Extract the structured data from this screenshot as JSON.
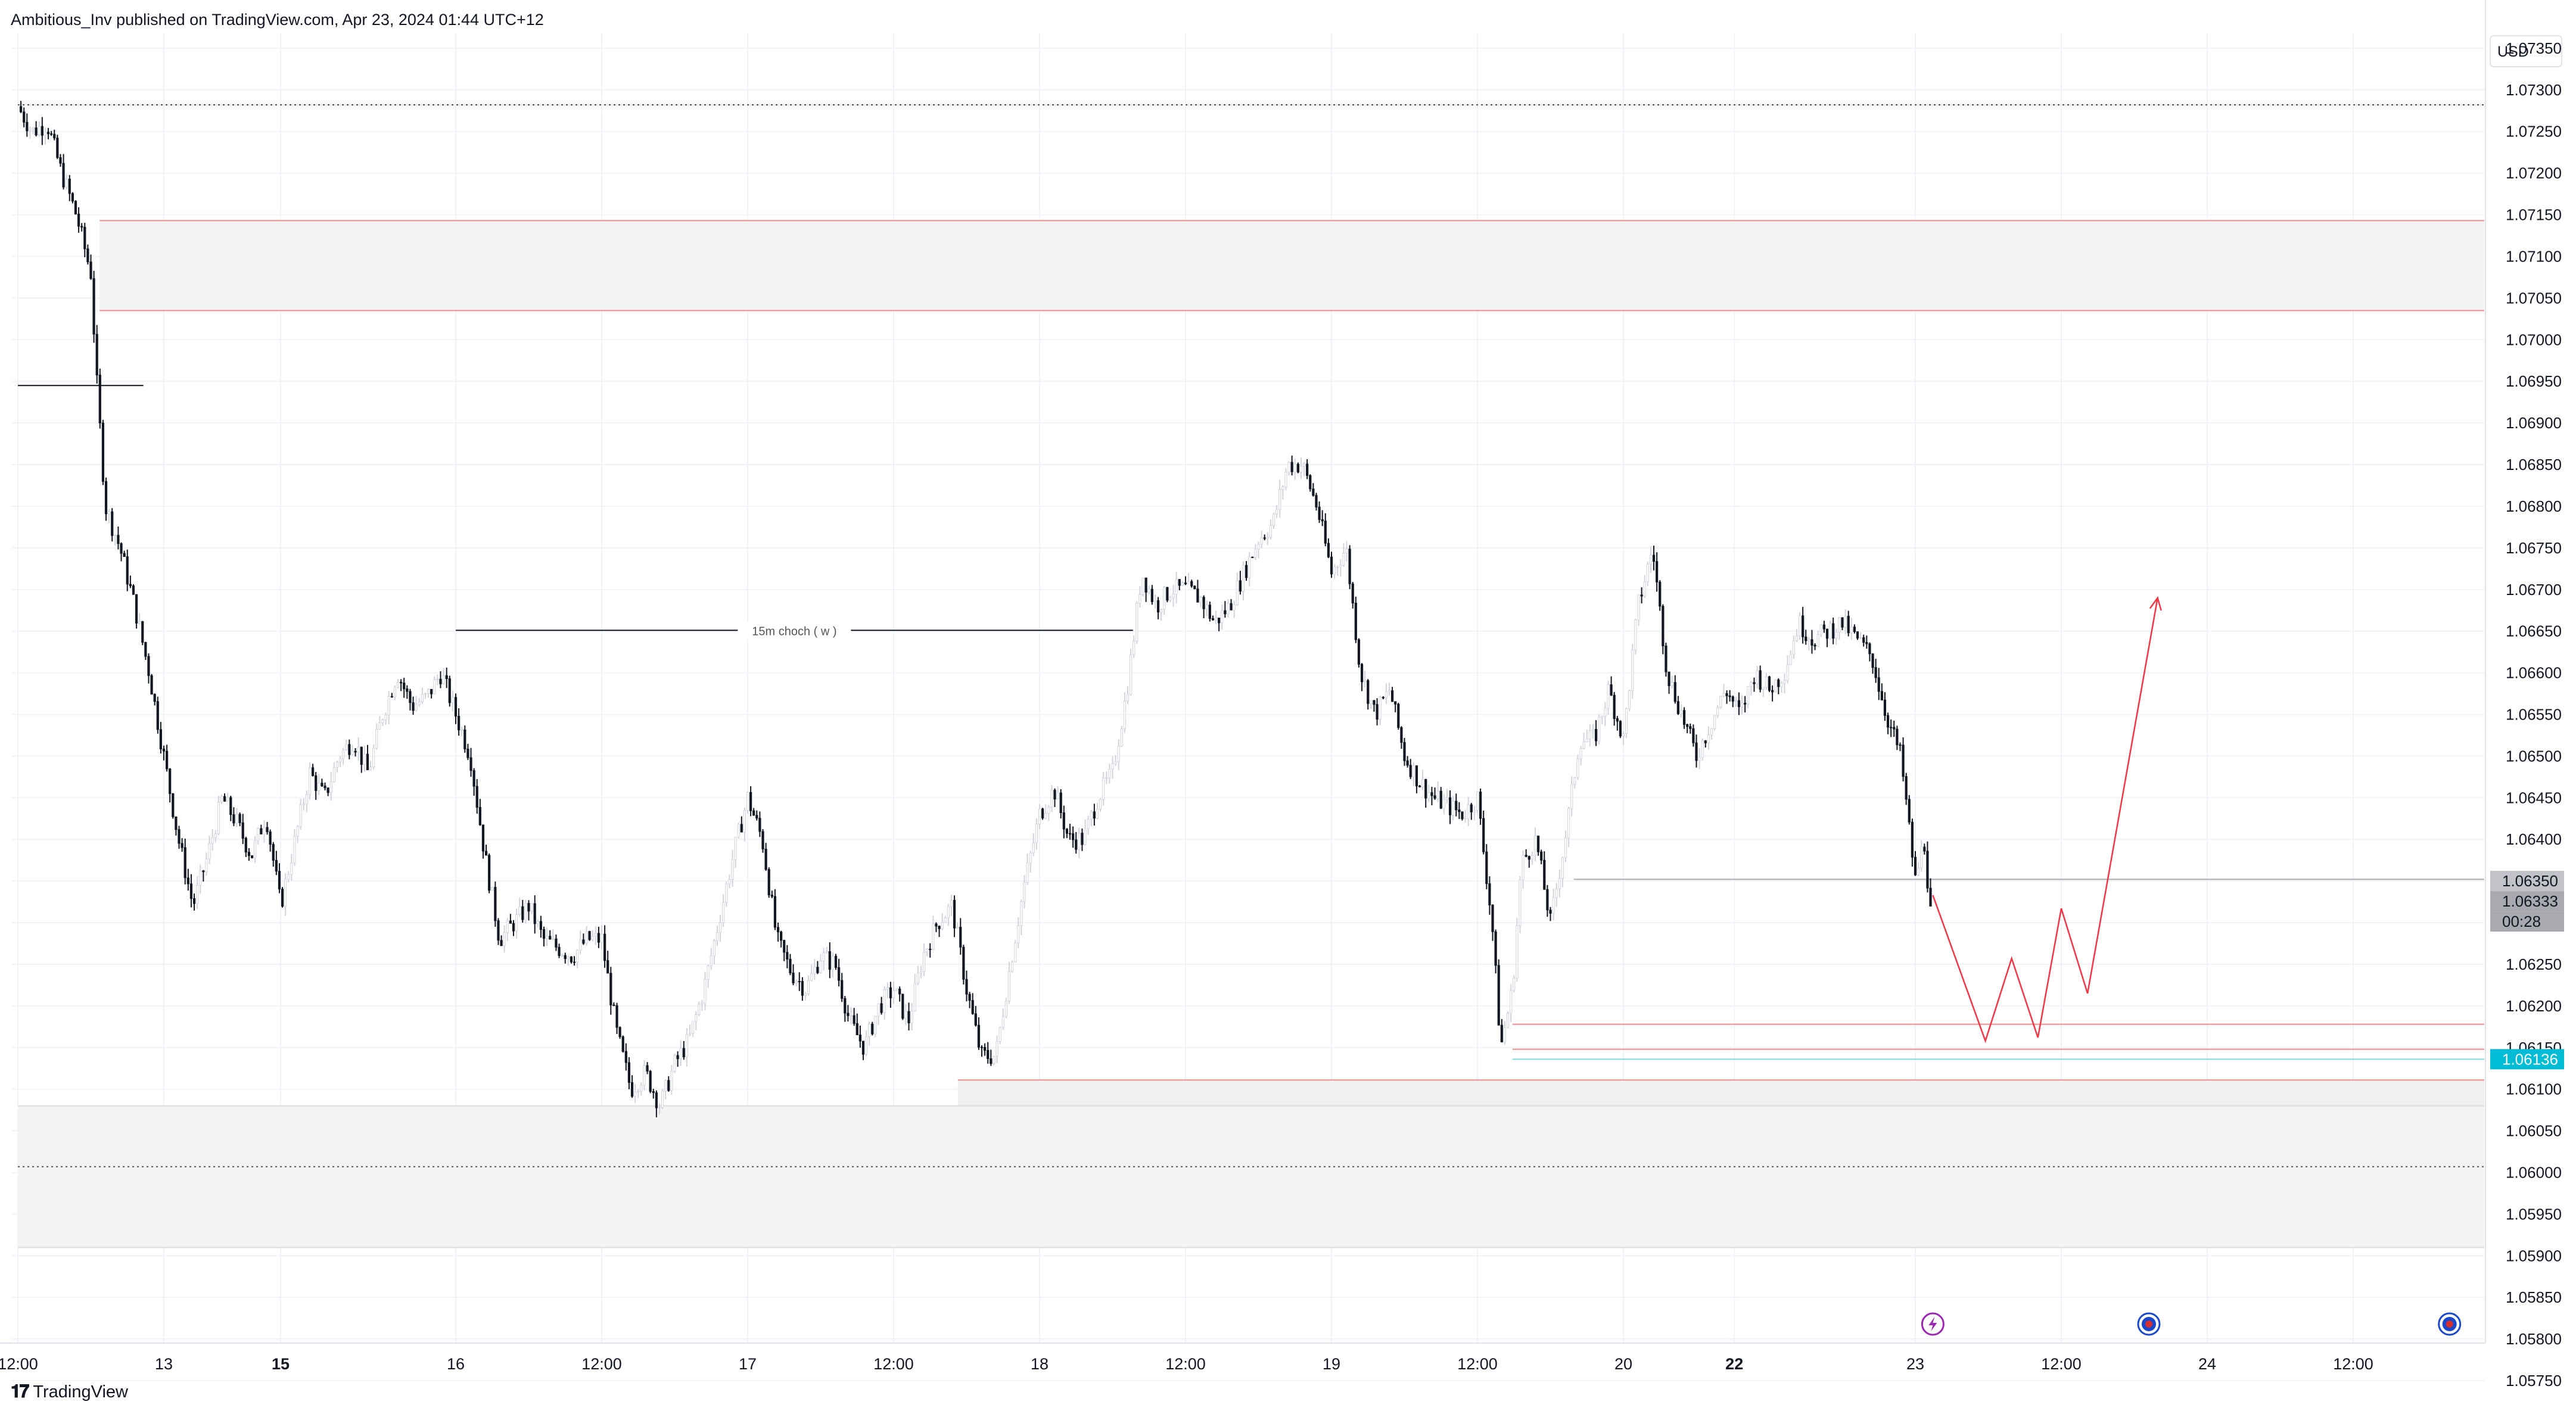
{
  "header": {
    "text": "Ambitious_Inv published on TradingView.com, Apr 23, 2024 01:44 UTC+12"
  },
  "footer": {
    "brand": "TradingView",
    "mark": "𝟏𝟕"
  },
  "chart_data": {
    "type": "candlestick",
    "currency_label": "USD",
    "y_axis": {
      "min": 1.0572,
      "max": 1.0739,
      "ticks": [
        "1.07350",
        "1.07300",
        "1.07250",
        "1.07200",
        "1.07150",
        "1.07100",
        "1.07050",
        "1.07000",
        "1.06950",
        "1.06900",
        "1.06850",
        "1.06800",
        "1.06750",
        "1.06700",
        "1.06650",
        "1.06600",
        "1.06550",
        "1.06500",
        "1.06450",
        "1.06400",
        "1.06350",
        "1.06300",
        "1.06250",
        "1.06200",
        "1.06150",
        "1.06100",
        "1.06050",
        "1.06000",
        "1.05950",
        "1.05900",
        "1.05850",
        "1.05800",
        "1.05750"
      ]
    },
    "x_axis": {
      "ticks": [
        {
          "label": "12:00",
          "t": 0.0,
          "bold": false
        },
        {
          "label": "13",
          "t": 0.5,
          "bold": false
        },
        {
          "label": "15",
          "t": 0.9,
          "bold": true
        },
        {
          "label": "16",
          "t": 1.5,
          "bold": false
        },
        {
          "label": "12:00",
          "t": 2.0,
          "bold": false
        },
        {
          "label": "17",
          "t": 2.5,
          "bold": false
        },
        {
          "label": "12:00",
          "t": 3.0,
          "bold": false
        },
        {
          "label": "18",
          "t": 3.5,
          "bold": false
        },
        {
          "label": "12:00",
          "t": 4.0,
          "bold": false
        },
        {
          "label": "19",
          "t": 4.5,
          "bold": false
        },
        {
          "label": "12:00",
          "t": 5.0,
          "bold": false
        },
        {
          "label": "20",
          "t": 5.5,
          "bold": false
        },
        {
          "label": "22",
          "t": 5.88,
          "bold": true
        },
        {
          "label": "23",
          "t": 6.5,
          "bold": false
        },
        {
          "label": "12:00",
          "t": 7.0,
          "bold": false
        },
        {
          "label": "24",
          "t": 7.5,
          "bold": false
        },
        {
          "label": "12:00",
          "t": 8.0,
          "bold": false
        }
      ]
    },
    "price_path": [
      [
        0.0,
        1.0728
      ],
      [
        0.05,
        1.0725
      ],
      [
        0.1,
        1.0726
      ],
      [
        0.15,
        1.072
      ],
      [
        0.2,
        1.0715
      ],
      [
        0.25,
        1.0708
      ],
      [
        0.27,
        1.0695
      ],
      [
        0.3,
        1.068
      ],
      [
        0.35,
        1.0675
      ],
      [
        0.4,
        1.0668
      ],
      [
        0.45,
        1.066
      ],
      [
        0.5,
        1.065
      ],
      [
        0.55,
        1.064
      ],
      [
        0.6,
        1.0632
      ],
      [
        0.65,
        1.0638
      ],
      [
        0.7,
        1.0645
      ],
      [
        0.75,
        1.0642
      ],
      [
        0.8,
        1.0638
      ],
      [
        0.85,
        1.0643
      ],
      [
        0.9,
        1.0632
      ],
      [
        0.95,
        1.064
      ],
      [
        1.0,
        1.0648
      ],
      [
        1.05,
        1.0645
      ],
      [
        1.1,
        1.065
      ],
      [
        1.15,
        1.0652
      ],
      [
        1.2,
        1.0648
      ],
      [
        1.25,
        1.0655
      ],
      [
        1.3,
        1.066
      ],
      [
        1.35,
        1.0656
      ],
      [
        1.4,
        1.0657
      ],
      [
        1.45,
        1.066
      ],
      [
        1.5,
        1.0655
      ],
      [
        1.55,
        1.065
      ],
      [
        1.6,
        1.0638
      ],
      [
        1.65,
        1.0628
      ],
      [
        1.7,
        1.063
      ],
      [
        1.75,
        1.0632
      ],
      [
        1.8,
        1.0628
      ],
      [
        1.85,
        1.0627
      ],
      [
        1.9,
        1.0626
      ],
      [
        1.95,
        1.0628
      ],
      [
        2.0,
        1.0628
      ],
      [
        2.05,
        1.0617
      ],
      [
        2.1,
        1.061
      ],
      [
        2.15,
        1.0612
      ],
      [
        2.2,
        1.0608
      ],
      [
        2.25,
        1.0613
      ],
      [
        2.3,
        1.0616
      ],
      [
        2.35,
        1.0622
      ],
      [
        2.4,
        1.063
      ],
      [
        2.45,
        1.0638
      ],
      [
        2.5,
        1.0645
      ],
      [
        2.55,
        1.064
      ],
      [
        2.6,
        1.0628
      ],
      [
        2.65,
        1.0624
      ],
      [
        2.7,
        1.0622
      ],
      [
        2.75,
        1.0626
      ],
      [
        2.8,
        1.0625
      ],
      [
        2.85,
        1.0618
      ],
      [
        2.9,
        1.0615
      ],
      [
        2.95,
        1.062
      ],
      [
        3.0,
        1.0622
      ],
      [
        3.05,
        1.0618
      ],
      [
        3.1,
        1.0626
      ],
      [
        3.15,
        1.063
      ],
      [
        3.2,
        1.0632
      ],
      [
        3.25,
        1.0622
      ],
      [
        3.3,
        1.0614
      ],
      [
        3.35,
        1.0614
      ],
      [
        3.4,
        1.0625
      ],
      [
        3.45,
        1.0635
      ],
      [
        3.5,
        1.0643
      ],
      [
        3.55,
        1.0646
      ],
      [
        3.6,
        1.064
      ],
      [
        3.65,
        1.064
      ],
      [
        3.7,
        1.0645
      ],
      [
        3.75,
        1.0648
      ],
      [
        3.8,
        1.0658
      ],
      [
        3.85,
        1.0672
      ],
      [
        3.9,
        1.0668
      ],
      [
        3.95,
        1.067
      ],
      [
        4.0,
        1.067
      ],
      [
        4.05,
        1.0669
      ],
      [
        4.1,
        1.0666
      ],
      [
        4.15,
        1.0668
      ],
      [
        4.2,
        1.0672
      ],
      [
        4.25,
        1.0676
      ],
      [
        4.3,
        1.0678
      ],
      [
        4.35,
        1.0685
      ],
      [
        4.4,
        1.0685
      ],
      [
        4.45,
        1.068
      ],
      [
        4.5,
        1.0672
      ],
      [
        4.55,
        1.0675
      ],
      [
        4.6,
        1.066
      ],
      [
        4.65,
        1.0655
      ],
      [
        4.7,
        1.0658
      ],
      [
        4.75,
        1.065
      ],
      [
        4.8,
        1.0647
      ],
      [
        4.85,
        1.0645
      ],
      [
        4.9,
        1.0644
      ],
      [
        4.95,
        1.0643
      ],
      [
        5.0,
        1.0645
      ],
      [
        5.05,
        1.063
      ],
      [
        5.08,
        1.0615
      ],
      [
        5.12,
        1.0622
      ],
      [
        5.15,
        1.0637
      ],
      [
        5.2,
        1.064
      ],
      [
        5.25,
        1.063
      ],
      [
        5.3,
        1.064
      ],
      [
        5.35,
        1.0652
      ],
      [
        5.4,
        1.0652
      ],
      [
        5.45,
        1.0658
      ],
      [
        5.5,
        1.0652
      ],
      [
        5.55,
        1.0668
      ],
      [
        5.6,
        1.0675
      ],
      [
        5.65,
        1.066
      ],
      [
        5.7,
        1.0655
      ],
      [
        5.75,
        1.065
      ],
      [
        5.8,
        1.0654
      ],
      [
        5.85,
        1.0658
      ],
      [
        5.9,
        1.0655
      ],
      [
        5.95,
        1.066
      ],
      [
        6.0,
        1.0658
      ],
      [
        6.05,
        1.066
      ],
      [
        6.1,
        1.0666
      ],
      [
        6.15,
        1.0664
      ],
      [
        6.2,
        1.0665
      ],
      [
        6.25,
        1.0666
      ],
      [
        6.3,
        1.0664
      ],
      [
        6.35,
        1.0662
      ],
      [
        6.4,
        1.0655
      ],
      [
        6.45,
        1.065
      ],
      [
        6.5,
        1.0635
      ],
      [
        6.53,
        1.064
      ],
      [
        6.56,
        1.0628
      ]
    ],
    "zones": [
      {
        "top": 1.07143,
        "bottom": 1.07035,
        "from": 0.28,
        "border": "#f28b8b",
        "fill": "#f4f4f4"
      },
      {
        "top": 1.06111,
        "bottom": 1.06062,
        "from": 3.22,
        "border": "#f28b8b",
        "fill": "#f0f0f3"
      },
      {
        "top": 1.0608,
        "bottom": 1.0591,
        "from": 0.0,
        "border": "#dddddd",
        "fill": "#f4f4f4"
      }
    ],
    "lines": [
      {
        "price": 1.07282,
        "from": 0.0,
        "style": "dotted",
        "color": "#555555"
      },
      {
        "price": 1.06007,
        "from": 0.0,
        "style": "dotted",
        "color": "#555555"
      },
      {
        "price": 1.06945,
        "from": 0.0,
        "to": 0.43,
        "style": "solid",
        "color": "#131722"
      },
      {
        "price": 1.06352,
        "from": 5.33,
        "style": "solid",
        "color": "#aaaaaa"
      },
      {
        "price": 1.06178,
        "from": 5.12,
        "style": "solid",
        "color": "#f28b8b"
      },
      {
        "price": 1.06148,
        "from": 5.12,
        "style": "solid",
        "color": "#f28b8b"
      },
      {
        "price": 1.06136,
        "from": 5.12,
        "style": "solid",
        "color": "#7fd6e4"
      }
    ],
    "choch": {
      "label": "15m choch ( w )",
      "price": 1.06651,
      "from": 1.5,
      "to": 3.82
    },
    "projection": [
      [
        6.56,
        1.06333
      ],
      [
        6.74,
        1.06158
      ],
      [
        6.83,
        1.06257
      ],
      [
        6.92,
        1.06162
      ],
      [
        7.0,
        1.06317
      ],
      [
        7.09,
        1.06215
      ],
      [
        7.33,
        1.0669
      ]
    ],
    "price_labels": [
      {
        "text": "1.06350",
        "price": 1.0635,
        "bg": "#c1c3c8",
        "color": "#131722"
      },
      {
        "text": "1.06333",
        "price": 1.06333,
        "bg": "#a8aaaf",
        "color": "#131722"
      },
      {
        "text": "00:28",
        "price": 1.06305,
        "bg": "#a8aaaf",
        "color": "#131722"
      },
      {
        "text": "1.06136",
        "price": 1.06136,
        "bg": "#00bcd4",
        "color": "#ffffff"
      }
    ],
    "event_markers": [
      {
        "t": 6.56,
        "icon": "lightning-event-icon",
        "color": "#9c27b0"
      },
      {
        "t": 7.3,
        "icon": "us-flag-event-icon",
        "color": "#1848cc"
      },
      {
        "t": 8.33,
        "icon": "us-flag-event-icon",
        "color": "#1848cc"
      }
    ]
  }
}
